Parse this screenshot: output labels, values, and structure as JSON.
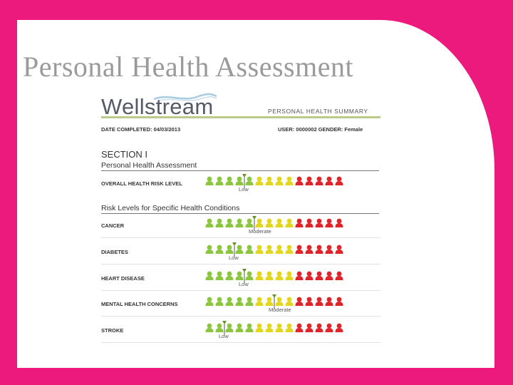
{
  "slide": {
    "title": "Personal Health Assessment"
  },
  "report": {
    "logo_text": "Wellstream",
    "label": "PERSONAL HEALTH SUMMARY",
    "date_completed": "DATE COMPLETED: 04/03/2013",
    "user_info": "USER: 0000002  GENDER: Female",
    "section_heading": "SECTION I",
    "assessment_heading": "Personal Health Assessment",
    "conditions_heading": "Risk Levels for Specific Health Conditions"
  },
  "scale": {
    "total": 14,
    "green_count": 5,
    "yellow_count": 4,
    "red_count": 5,
    "colors": {
      "green": "#8cc63f",
      "yellow": "#e2d61f",
      "red": "#e0242a"
    }
  },
  "overall": {
    "label": "OVERALL HEALTH RISK LEVEL",
    "risk": "Low",
    "position": 4
  },
  "conditions": [
    {
      "label": "CANCER",
      "risk": "Moderate",
      "position": 5
    },
    {
      "label": "DIABETES",
      "risk": "Low",
      "position": 3
    },
    {
      "label": "HEART DISEASE",
      "risk": "Low",
      "position": 4
    },
    {
      "label": "MENTAL HEALTH CONCERNS",
      "risk": "Moderate",
      "position": 7
    },
    {
      "label": "STROKE",
      "risk": "Low",
      "position": 2
    }
  ]
}
